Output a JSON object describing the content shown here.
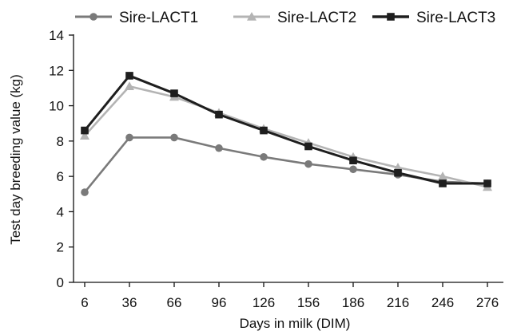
{
  "chart_data": {
    "type": "line",
    "xlabel": "Days in milk (DIM)",
    "ylabel": "Test day  breeding value (kg)",
    "categories": [
      "6",
      "36",
      "66",
      "96",
      "126",
      "156",
      "186",
      "216",
      "246",
      "276"
    ],
    "ylim": [
      0,
      14
    ],
    "yticks": [
      0,
      2,
      4,
      6,
      8,
      10,
      12,
      14
    ],
    "grid": false,
    "legend_position": "top",
    "series": [
      {
        "name": "Sire-LACT1",
        "color": "#7a7a7a",
        "marker": "circle",
        "values": [
          5.1,
          8.2,
          8.2,
          7.6,
          7.1,
          6.7,
          6.4,
          6.1,
          5.7,
          5.6
        ]
      },
      {
        "name": "Sire-LACT2",
        "color": "#b4b4b4",
        "marker": "triangle",
        "values": [
          8.3,
          11.1,
          10.5,
          9.6,
          8.7,
          7.9,
          7.1,
          6.5,
          6.0,
          5.4
        ]
      },
      {
        "name": "Sire-LACT3",
        "color": "#1e1e1e",
        "marker": "square",
        "values": [
          8.6,
          11.7,
          10.7,
          9.5,
          8.6,
          7.7,
          6.9,
          6.2,
          5.6,
          5.6
        ]
      }
    ]
  }
}
